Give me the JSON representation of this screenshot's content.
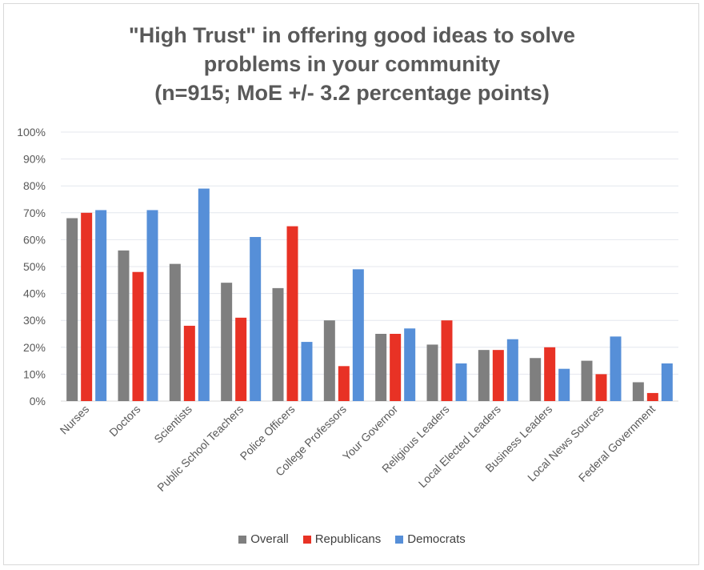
{
  "chart_data": {
    "type": "bar",
    "title_lines": [
      "\"High Trust\" in offering good ideas to solve",
      "problems in your community",
      "(n=915; MoE +/- 3.2 percentage points)"
    ],
    "categories": [
      "Nurses",
      "Doctors",
      "Scientists",
      "Public School Teachers",
      "Police Officers",
      "College Professors",
      "Your Governor",
      "Religious Leaders",
      "Local Elected Leaders",
      "Business Leaders",
      "Local News Sources",
      "Federal Government"
    ],
    "series": [
      {
        "name": "Overall",
        "color": "#7f7f7f",
        "values": [
          68,
          56,
          51,
          44,
          42,
          30,
          25,
          21,
          19,
          16,
          15,
          7
        ]
      },
      {
        "name": "Republicans",
        "color": "#e83225",
        "values": [
          70,
          48,
          28,
          31,
          65,
          13,
          25,
          30,
          19,
          20,
          10,
          3
        ]
      },
      {
        "name": "Democrats",
        "color": "#568fd8",
        "values": [
          71,
          71,
          79,
          61,
          22,
          49,
          27,
          14,
          23,
          12,
          24,
          14
        ]
      }
    ],
    "yticks": [
      "0%",
      "10%",
      "20%",
      "30%",
      "40%",
      "50%",
      "60%",
      "70%",
      "80%",
      "90%",
      "100%"
    ],
    "ylim": [
      0,
      100
    ],
    "xlabel": "",
    "ylabel": "",
    "grid": true,
    "legend_position": "bottom"
  }
}
